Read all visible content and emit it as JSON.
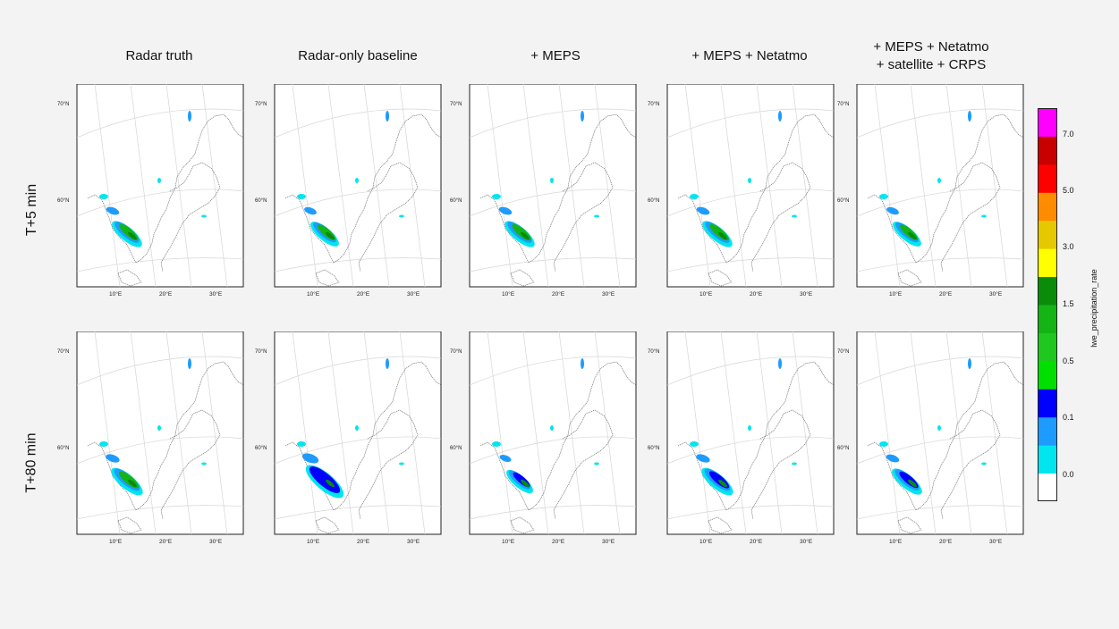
{
  "columns": [
    {
      "title": "Radar truth",
      "rain": [
        0.95,
        1.0,
        1.0
      ]
    },
    {
      "title": "Radar-only baseline",
      "rain": [
        0.9,
        0.95,
        1.2
      ]
    },
    {
      "title": "+ MEPS",
      "rain": [
        0.95,
        1.0,
        0.85
      ]
    },
    {
      "title": "+ MEPS + Netatmo",
      "rain": [
        0.95,
        1.0,
        1.0
      ]
    },
    {
      "title": "+ MEPS + Netatmo\n+ satellite + CRPS",
      "rain": [
        0.9,
        1.0,
        0.95
      ]
    }
  ],
  "rows": [
    {
      "label": "T+5 min"
    },
    {
      "label": "T+80 min"
    }
  ],
  "map": {
    "lat_labels": [
      "70°N",
      "60°N"
    ],
    "lon_labels": [
      "10°E",
      "20°E",
      "30°E"
    ]
  },
  "colorbar": {
    "title": "lwe_precipitation_rate",
    "tick_labels": [
      "7.0",
      "5.0",
      "3.0",
      "1.5",
      "0.5",
      "0.1",
      "0.0"
    ],
    "colors": [
      "#ffffff",
      "#00e5ee",
      "#1e9bff",
      "#0000ff",
      "#00e000",
      "#1ec81e",
      "#14b414",
      "#0a8c0a",
      "#ffff00",
      "#e6c800",
      "#ff8c00",
      "#ff0000",
      "#c80000",
      "#ff00ff"
    ]
  }
}
